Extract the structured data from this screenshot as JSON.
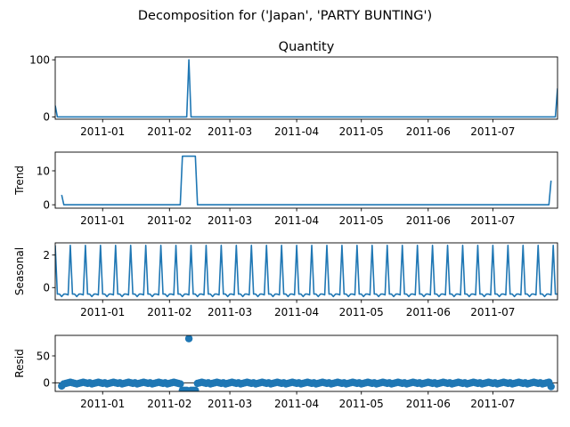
{
  "figure": {
    "title": "Decomposition for ('Japan', 'PARTY BUNTING')"
  },
  "chart_data": [
    {
      "type": "line",
      "id": "observed",
      "title": "Quantity",
      "ylabel": "",
      "ylim": [
        -4,
        105
      ],
      "yticks": [
        0,
        100
      ],
      "xlim": [
        "2010-12-10",
        "2011-07-31"
      ],
      "xticks": [
        "2011-01",
        "2011-02",
        "2011-03",
        "2011-04",
        "2011-05",
        "2011-06",
        "2011-07"
      ],
      "series": [
        {
          "values": [
            [
              "2010-12-10",
              20
            ],
            [
              "2010-12-11",
              0
            ],
            [
              "2011-02-09",
              0
            ],
            [
              "2011-02-10",
              100
            ],
            [
              "2011-02-11",
              0
            ],
            [
              "2011-07-30",
              0
            ],
            [
              "2011-07-31",
              50
            ]
          ]
        }
      ]
    },
    {
      "type": "line",
      "id": "trend",
      "title": "",
      "ylabel": "Trend",
      "ylim": [
        -1,
        15.5
      ],
      "yticks": [
        0,
        10
      ],
      "xlim": [
        "2010-12-10",
        "2011-07-31"
      ],
      "xticks": [
        "2011-01",
        "2011-02",
        "2011-03",
        "2011-04",
        "2011-05",
        "2011-06",
        "2011-07"
      ],
      "series": [
        {
          "values": [
            [
              "2010-12-13",
              2.9
            ],
            [
              "2010-12-14",
              0
            ],
            [
              "2011-02-06",
              0
            ],
            [
              "2011-02-07",
              14.3
            ],
            [
              "2011-02-13",
              14.3
            ],
            [
              "2011-02-14",
              0
            ],
            [
              "2011-07-27",
              0
            ],
            [
              "2011-07-28",
              7.1
            ]
          ]
        }
      ]
    },
    {
      "type": "line",
      "id": "seasonal",
      "title": "",
      "ylabel": "Seasonal",
      "ylim": [
        -0.75,
        2.75
      ],
      "yticks": [
        0,
        2
      ],
      "xlim": [
        "2010-12-10",
        "2011-07-31"
      ],
      "xticks": [
        "2011-01",
        "2011-02",
        "2011-03",
        "2011-04",
        "2011-05",
        "2011-06",
        "2011-07"
      ],
      "period_days": 7,
      "pattern": [
        2.6,
        -0.4,
        -0.4,
        -0.55,
        -0.4,
        -0.4,
        -0.45
      ],
      "series": [
        {
          "start": "2010-12-10",
          "end": "2011-07-31"
        }
      ]
    },
    {
      "type": "scatter",
      "id": "resid",
      "title": "",
      "ylabel": "Resid",
      "ylim": [
        -16,
        88
      ],
      "yticks": [
        0,
        50
      ],
      "xlim": [
        "2010-12-10",
        "2011-07-31"
      ],
      "xticks": [
        "2011-01",
        "2011-02",
        "2011-03",
        "2011-04",
        "2011-05",
        "2011-06",
        "2011-07"
      ],
      "points": [
        [
          "2010-12-13",
          -6
        ],
        [
          "2010-12-14",
          -2
        ],
        [
          "2010-12-15",
          -1
        ],
        [
          "2010-12-16",
          0
        ],
        [
          "2010-12-17",
          1
        ],
        [
          "2010-12-18",
          0
        ],
        [
          "2010-12-19",
          -1
        ],
        [
          "2010-12-20",
          -2
        ],
        [
          "2010-12-21",
          -1
        ],
        [
          "2010-12-22",
          0
        ],
        [
          "2010-12-23",
          1
        ],
        [
          "2010-12-24",
          0
        ],
        [
          "2010-12-25",
          -1
        ],
        [
          "2010-12-26",
          0
        ],
        [
          "2010-12-27",
          -2
        ],
        [
          "2010-12-28",
          -1
        ],
        [
          "2010-12-29",
          0
        ],
        [
          "2010-12-30",
          1
        ],
        [
          "2010-12-31",
          0
        ],
        [
          "2011-01-01",
          -1
        ],
        [
          "2011-01-02",
          0
        ],
        [
          "2011-01-03",
          -2
        ],
        [
          "2011-01-04",
          -1
        ],
        [
          "2011-01-05",
          0
        ],
        [
          "2011-01-06",
          1
        ],
        [
          "2011-01-07",
          0
        ],
        [
          "2011-01-08",
          -1
        ],
        [
          "2011-01-09",
          0
        ],
        [
          "2011-01-10",
          -2
        ],
        [
          "2011-01-11",
          -1
        ],
        [
          "2011-01-12",
          0
        ],
        [
          "2011-01-13",
          1
        ],
        [
          "2011-01-14",
          0
        ],
        [
          "2011-01-15",
          -1
        ],
        [
          "2011-01-16",
          0
        ],
        [
          "2011-01-17",
          -2
        ],
        [
          "2011-01-18",
          -1
        ],
        [
          "2011-01-19",
          0
        ],
        [
          "2011-01-20",
          1
        ],
        [
          "2011-01-21",
          0
        ],
        [
          "2011-01-22",
          -1
        ],
        [
          "2011-01-23",
          0
        ],
        [
          "2011-01-24",
          -2
        ],
        [
          "2011-01-25",
          -1
        ],
        [
          "2011-01-26",
          0
        ],
        [
          "2011-01-27",
          1
        ],
        [
          "2011-01-28",
          0
        ],
        [
          "2011-01-29",
          -1
        ],
        [
          "2011-01-30",
          0
        ],
        [
          "2011-01-31",
          -2
        ],
        [
          "2011-02-01",
          -1
        ],
        [
          "2011-02-02",
          0
        ],
        [
          "2011-02-03",
          1
        ],
        [
          "2011-02-04",
          0
        ],
        [
          "2011-02-05",
          -1
        ],
        [
          "2011-02-06",
          -2
        ],
        [
          "2011-02-07",
          -14
        ],
        [
          "2011-02-08",
          -14
        ],
        [
          "2011-02-09",
          -14
        ],
        [
          "2011-02-10",
          82
        ],
        [
          "2011-02-11",
          -14
        ],
        [
          "2011-02-12",
          -14
        ],
        [
          "2011-02-13",
          -14
        ],
        [
          "2011-02-14",
          -1
        ],
        [
          "2011-02-15",
          0
        ],
        [
          "2011-02-16",
          1
        ],
        [
          "2011-02-17",
          0
        ],
        [
          "2011-02-18",
          -1
        ],
        [
          "2011-02-19",
          0
        ],
        [
          "2011-02-20",
          -2
        ],
        [
          "2011-02-21",
          -1
        ],
        [
          "2011-02-22",
          0
        ],
        [
          "2011-02-23",
          1
        ],
        [
          "2011-02-24",
          0
        ],
        [
          "2011-02-25",
          -1
        ],
        [
          "2011-02-26",
          0
        ],
        [
          "2011-02-27",
          -2
        ],
        [
          "2011-02-28",
          -1
        ],
        [
          "2011-03-01",
          0
        ],
        [
          "2011-03-02",
          1
        ],
        [
          "2011-03-03",
          0
        ],
        [
          "2011-03-04",
          -1
        ],
        [
          "2011-03-05",
          0
        ],
        [
          "2011-03-06",
          -2
        ],
        [
          "2011-03-07",
          -1
        ],
        [
          "2011-03-08",
          0
        ],
        [
          "2011-03-09",
          1
        ],
        [
          "2011-03-10",
          0
        ],
        [
          "2011-03-11",
          -1
        ],
        [
          "2011-03-12",
          0
        ],
        [
          "2011-03-13",
          -2
        ],
        [
          "2011-03-14",
          -1
        ],
        [
          "2011-03-15",
          0
        ],
        [
          "2011-03-16",
          1
        ],
        [
          "2011-03-17",
          0
        ],
        [
          "2011-03-18",
          -1
        ],
        [
          "2011-03-19",
          0
        ],
        [
          "2011-03-20",
          -2
        ],
        [
          "2011-03-21",
          -1
        ],
        [
          "2011-03-22",
          0
        ],
        [
          "2011-03-23",
          1
        ],
        [
          "2011-03-24",
          0
        ],
        [
          "2011-03-25",
          -1
        ],
        [
          "2011-03-26",
          0
        ],
        [
          "2011-03-27",
          -2
        ],
        [
          "2011-03-28",
          -1
        ],
        [
          "2011-03-29",
          0
        ],
        [
          "2011-03-30",
          1
        ],
        [
          "2011-03-31",
          0
        ],
        [
          "2011-04-01",
          -1
        ],
        [
          "2011-04-02",
          0
        ],
        [
          "2011-04-03",
          -2
        ],
        [
          "2011-04-04",
          -1
        ],
        [
          "2011-04-05",
          0
        ],
        [
          "2011-04-06",
          1
        ],
        [
          "2011-04-07",
          0
        ],
        [
          "2011-04-08",
          -1
        ],
        [
          "2011-04-09",
          0
        ],
        [
          "2011-04-10",
          -2
        ],
        [
          "2011-04-11",
          -1
        ],
        [
          "2011-04-12",
          0
        ],
        [
          "2011-04-13",
          1
        ],
        [
          "2011-04-14",
          0
        ],
        [
          "2011-04-15",
          -1
        ],
        [
          "2011-04-16",
          0
        ],
        [
          "2011-04-17",
          -2
        ],
        [
          "2011-04-18",
          -1
        ],
        [
          "2011-04-19",
          0
        ],
        [
          "2011-04-20",
          1
        ],
        [
          "2011-04-21",
          0
        ],
        [
          "2011-04-22",
          -1
        ],
        [
          "2011-04-23",
          0
        ],
        [
          "2011-04-24",
          -2
        ],
        [
          "2011-04-25",
          -1
        ],
        [
          "2011-04-26",
          0
        ],
        [
          "2011-04-27",
          1
        ],
        [
          "2011-04-28",
          0
        ],
        [
          "2011-04-29",
          -1
        ],
        [
          "2011-04-30",
          0
        ],
        [
          "2011-05-01",
          -2
        ],
        [
          "2011-05-02",
          -1
        ],
        [
          "2011-05-03",
          0
        ],
        [
          "2011-05-04",
          1
        ],
        [
          "2011-05-05",
          0
        ],
        [
          "2011-05-06",
          -1
        ],
        [
          "2011-05-07",
          0
        ],
        [
          "2011-05-08",
          -2
        ],
        [
          "2011-05-09",
          -1
        ],
        [
          "2011-05-10",
          0
        ],
        [
          "2011-05-11",
          1
        ],
        [
          "2011-05-12",
          0
        ],
        [
          "2011-05-13",
          -1
        ],
        [
          "2011-05-14",
          0
        ],
        [
          "2011-05-15",
          -2
        ],
        [
          "2011-05-16",
          -1
        ],
        [
          "2011-05-17",
          0
        ],
        [
          "2011-05-18",
          1
        ],
        [
          "2011-05-19",
          0
        ],
        [
          "2011-05-20",
          -1
        ],
        [
          "2011-05-21",
          0
        ],
        [
          "2011-05-22",
          -2
        ],
        [
          "2011-05-23",
          -1
        ],
        [
          "2011-05-24",
          0
        ],
        [
          "2011-05-25",
          1
        ],
        [
          "2011-05-26",
          0
        ],
        [
          "2011-05-27",
          -1
        ],
        [
          "2011-05-28",
          0
        ],
        [
          "2011-05-29",
          -2
        ],
        [
          "2011-05-30",
          -1
        ],
        [
          "2011-05-31",
          0
        ],
        [
          "2011-06-01",
          1
        ],
        [
          "2011-06-02",
          0
        ],
        [
          "2011-06-03",
          -1
        ],
        [
          "2011-06-04",
          0
        ],
        [
          "2011-06-05",
          -2
        ],
        [
          "2011-06-06",
          -1
        ],
        [
          "2011-06-07",
          0
        ],
        [
          "2011-06-08",
          1
        ],
        [
          "2011-06-09",
          0
        ],
        [
          "2011-06-10",
          -1
        ],
        [
          "2011-06-11",
          0
        ],
        [
          "2011-06-12",
          -2
        ],
        [
          "2011-06-13",
          -1
        ],
        [
          "2011-06-14",
          0
        ],
        [
          "2011-06-15",
          1
        ],
        [
          "2011-06-16",
          0
        ],
        [
          "2011-06-17",
          -1
        ],
        [
          "2011-06-18",
          0
        ],
        [
          "2011-06-19",
          -2
        ],
        [
          "2011-06-20",
          -1
        ],
        [
          "2011-06-21",
          0
        ],
        [
          "2011-06-22",
          1
        ],
        [
          "2011-06-23",
          0
        ],
        [
          "2011-06-24",
          -1
        ],
        [
          "2011-06-25",
          0
        ],
        [
          "2011-06-26",
          -2
        ],
        [
          "2011-06-27",
          -1
        ],
        [
          "2011-06-28",
          0
        ],
        [
          "2011-06-29",
          1
        ],
        [
          "2011-06-30",
          0
        ],
        [
          "2011-07-01",
          -1
        ],
        [
          "2011-07-02",
          0
        ],
        [
          "2011-07-03",
          -2
        ],
        [
          "2011-07-04",
          -1
        ],
        [
          "2011-07-05",
          0
        ],
        [
          "2011-07-06",
          1
        ],
        [
          "2011-07-07",
          0
        ],
        [
          "2011-07-08",
          -1
        ],
        [
          "2011-07-09",
          0
        ],
        [
          "2011-07-10",
          -2
        ],
        [
          "2011-07-11",
          -1
        ],
        [
          "2011-07-12",
          0
        ],
        [
          "2011-07-13",
          1
        ],
        [
          "2011-07-14",
          0
        ],
        [
          "2011-07-15",
          -1
        ],
        [
          "2011-07-16",
          0
        ],
        [
          "2011-07-17",
          -2
        ],
        [
          "2011-07-18",
          -1
        ],
        [
          "2011-07-19",
          0
        ],
        [
          "2011-07-20",
          1
        ],
        [
          "2011-07-21",
          0
        ],
        [
          "2011-07-22",
          -1
        ],
        [
          "2011-07-23",
          0
        ],
        [
          "2011-07-24",
          -2
        ],
        [
          "2011-07-25",
          -1
        ],
        [
          "2011-07-26",
          0
        ],
        [
          "2011-07-27",
          1
        ],
        [
          "2011-07-28",
          -7
        ]
      ]
    }
  ]
}
